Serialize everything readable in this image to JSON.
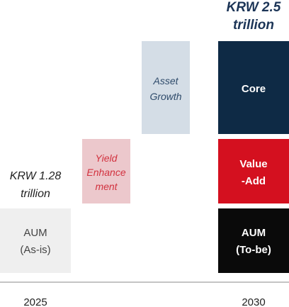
{
  "chart_data": {
    "type": "bar",
    "subtype": "waterfall",
    "categories": [
      "AUM (As-is)",
      "Yield Enhancement",
      "Asset Growth",
      "Core",
      "Value-Add",
      "AUM (To-be)"
    ],
    "x_axis_labels": [
      "2025",
      "2030"
    ],
    "start": {
      "year": "2025",
      "label_lines": [
        "AUM",
        "(As-is)"
      ],
      "total_lines": [
        "KRW 1.28",
        "trillion"
      ],
      "value": 1.28
    },
    "increments": [
      {
        "label_lines": [
          "Yield",
          "Enhance",
          "ment"
        ]
      },
      {
        "label_lines": [
          "Asset",
          "Growth"
        ]
      }
    ],
    "end": {
      "year": "2030",
      "total_lines": [
        "KRW 2.5",
        "trillion"
      ],
      "value": 2.5,
      "segments": [
        {
          "label_lines": [
            "Core"
          ]
        },
        {
          "label_lines": [
            "Value",
            "-Add"
          ]
        },
        {
          "label_lines": [
            "AUM",
            "(To-be)"
          ]
        }
      ]
    },
    "colors": {
      "as_is": "#efefef",
      "as_is_text": "#444444",
      "yield": "#ecc8cc",
      "yield_text": "#d2323f",
      "asset": "#d4dde6",
      "asset_text": "#2e4a6a",
      "core": "#0e2a45",
      "value_add": "#d4101f",
      "to_be": "#0a0a0a",
      "total_text": "#1c3557",
      "start_total_text": "#222222",
      "axis": "#888888",
      "year_text": "#222222"
    }
  }
}
